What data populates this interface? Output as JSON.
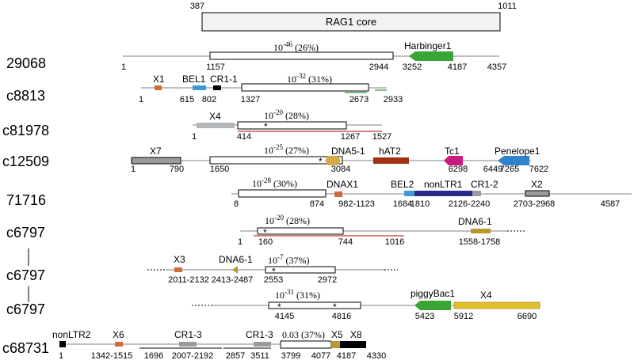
{
  "header": {
    "start": "387",
    "end": "1011",
    "core_label": "RAG1 core"
  },
  "rows": [
    {
      "label": "29068",
      "evalue_base": "10",
      "evalue_exp": "-46",
      "evalue_pct": "(26%)",
      "nums": [
        "1",
        "1157",
        "2944",
        "3252",
        "4187",
        "4357"
      ],
      "elements": [
        "Harbinger1"
      ]
    },
    {
      "label": "c8813",
      "evalue_base": "10",
      "evalue_exp": "-32",
      "evalue_pct": "(31%)",
      "nums": [
        "1",
        "615",
        "802",
        "1327",
        "2673",
        "2933"
      ],
      "elements": [
        "X1",
        "BEL1",
        "CR1-1"
      ]
    },
    {
      "label": "c81978",
      "evalue_base": "10",
      "evalue_exp": "-20",
      "evalue_pct": "(28%)",
      "nums": [
        "1",
        "414",
        "1267",
        "1527"
      ],
      "elements": [
        "X4"
      ]
    },
    {
      "label": "c12509",
      "evalue_base": "10",
      "evalue_exp": "-25",
      "evalue_pct": "(27%)",
      "nums": [
        "1",
        "790",
        "1650",
        "3084",
        "6298",
        "6449",
        "7265",
        "7622"
      ],
      "elements": [
        "X7",
        "DNA5-1",
        "hAT2",
        "Tc1",
        "Penelope1"
      ]
    },
    {
      "label": "71716",
      "evalue_base": "10",
      "evalue_exp": "-28",
      "evalue_pct": "(30%)",
      "nums": [
        "8",
        "874",
        "982-1123",
        "1684",
        "1810",
        "2126-2240",
        "2703-2968",
        "4587"
      ],
      "elements": [
        "DNAX1",
        "BEL2",
        "nonLTR1",
        "CR1-2",
        "X2"
      ]
    },
    {
      "label": "c6797",
      "evalue_base": "10",
      "evalue_exp": "-20",
      "evalue_pct": "(28%)",
      "nums": [
        "1",
        "160",
        "744",
        "1016",
        "1558-1758"
      ],
      "elements": [
        "DNA6-1"
      ]
    },
    {
      "label": "c6797",
      "evalue_base": "10",
      "evalue_exp": "-7",
      "evalue_pct": "(37%)",
      "nums": [
        "2011-2132",
        "2413-2487",
        "2553",
        "2972"
      ],
      "elements": [
        "X3",
        "DNA6-1"
      ]
    },
    {
      "label": "c6797",
      "evalue_base": "10",
      "evalue_exp": "-31",
      "evalue_pct": "(31%)",
      "nums": [
        "4145",
        "4816",
        "5423",
        "5912",
        "6690"
      ],
      "elements": [
        "piggyBac1",
        "X4"
      ]
    },
    {
      "label": "c68731",
      "evalue_plain": "0.03",
      "evalue_pct": "(37%)",
      "nums": [
        "1",
        "1342-1515",
        "1696",
        "2007-2192",
        "2857",
        "3511",
        "3799",
        "4077",
        "4187",
        "4330"
      ],
      "elements": [
        "nonLTR2",
        "X6",
        "CR1-3",
        "CR1-3",
        "X5",
        "X8"
      ]
    }
  ],
  "marks": {
    "asterisk": "*"
  },
  "colors": {
    "backbone": "#9a9a9a",
    "red_line": "#c0392b",
    "green_line": "#2e9a3a",
    "harbinger": "#3aa535",
    "x_orange": "#d26a3c",
    "bel": "#3a9ad9",
    "black": "#000000",
    "gray_box": "#9b9b9b",
    "x4_gray": "#b3b6b9",
    "dna5": "#d4a94a",
    "hat2": "#a0300f",
    "tc1": "#cc1b7e",
    "penelope": "#2f83cc",
    "nonltr1": "#2a2a8a",
    "dna6": "#b39a2a",
    "piggybac": "#3aa535",
    "x4_yellow": "#e2c12a",
    "x5": "#b89a30"
  }
}
